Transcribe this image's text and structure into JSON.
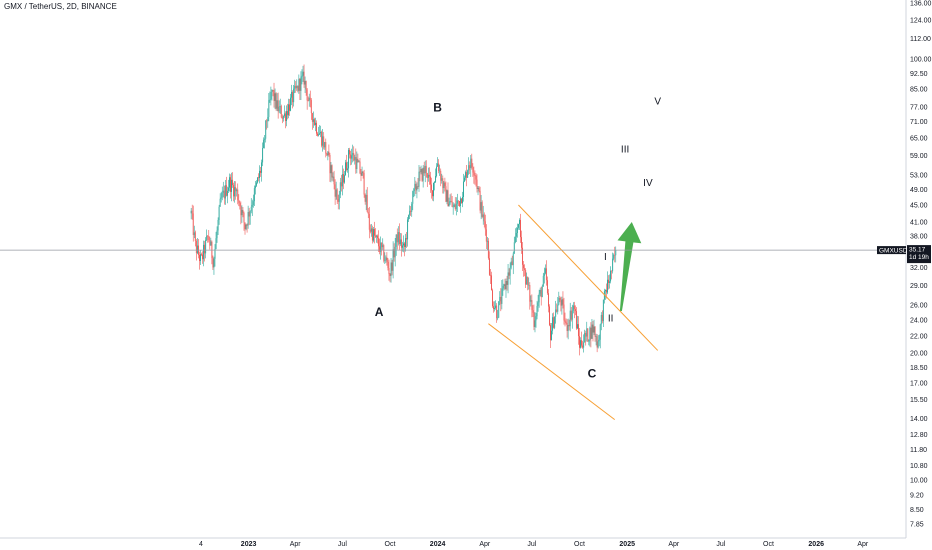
{
  "header": {
    "title": "GMX / TetherUS, 2D, BINANCE"
  },
  "colors": {
    "up": "#26a69a",
    "down": "#ef5350",
    "channel": "#f7a035",
    "arrow": "#4caf50",
    "last_price_bg": "#131722",
    "axis_text": "#131722"
  },
  "price_tag": {
    "symbol": "GMXUSDT",
    "price": "35.17",
    "countdown": "1d 19h"
  },
  "chart_data": {
    "type": "candlestick",
    "title": "GMX / TetherUS, 2D, BINANCE",
    "y_scale": "log",
    "ylim": [
      7.5,
      140
    ],
    "y_ticks": [
      "136.00",
      "124.00",
      "112.00",
      "100.00",
      "92.50",
      "85.00",
      "77.00",
      "71.00",
      "65.00",
      "59.00",
      "53.00",
      "49.00",
      "45.00",
      "41.00",
      "38.00",
      "35.00",
      "32.00",
      "29.00",
      "26.00",
      "24.00",
      "22.00",
      "20.00",
      "18.50",
      "17.00",
      "15.50",
      "14.00",
      "12.80",
      "11.80",
      "10.80",
      "10.00",
      "9.20",
      "8.50",
      "7.85"
    ],
    "x_ticks": [
      {
        "label": "4",
        "date": "2022-10-01"
      },
      {
        "label": "2023",
        "date": "2023-01-01",
        "bold": true
      },
      {
        "label": "Apr",
        "date": "2023-04-01"
      },
      {
        "label": "Jul",
        "date": "2023-07-01"
      },
      {
        "label": "Oct",
        "date": "2023-10-01"
      },
      {
        "label": "2024",
        "date": "2024-01-01",
        "bold": true
      },
      {
        "label": "Apr",
        "date": "2024-04-01"
      },
      {
        "label": "Jul",
        "date": "2024-07-01"
      },
      {
        "label": "Oct",
        "date": "2024-10-01"
      },
      {
        "label": "2025",
        "date": "2025-01-01",
        "bold": true
      },
      {
        "label": "Apr",
        "date": "2025-04-01"
      },
      {
        "label": "Jul",
        "date": "2025-07-01"
      },
      {
        "label": "Oct",
        "date": "2025-10-01"
      },
      {
        "label": "2026",
        "date": "2026-01-01",
        "bold": true
      },
      {
        "label": "Apr",
        "date": "2026-04-01"
      }
    ],
    "price_path": [
      {
        "date": "2022-09-12",
        "price": 43
      },
      {
        "date": "2022-09-20",
        "price": 36
      },
      {
        "date": "2022-10-01",
        "price": 33
      },
      {
        "date": "2022-10-15",
        "price": 38
      },
      {
        "date": "2022-10-25",
        "price": 33
      },
      {
        "date": "2022-11-08",
        "price": 46
      },
      {
        "date": "2022-11-25",
        "price": 51
      },
      {
        "date": "2022-12-10",
        "price": 48
      },
      {
        "date": "2022-12-25",
        "price": 40
      },
      {
        "date": "2023-01-10",
        "price": 47
      },
      {
        "date": "2023-01-25",
        "price": 55
      },
      {
        "date": "2023-02-05",
        "price": 72
      },
      {
        "date": "2023-02-15",
        "price": 84
      },
      {
        "date": "2023-02-25",
        "price": 77
      },
      {
        "date": "2023-03-10",
        "price": 73
      },
      {
        "date": "2023-03-25",
        "price": 80
      },
      {
        "date": "2023-04-10",
        "price": 88
      },
      {
        "date": "2023-04-18",
        "price": 90
      },
      {
        "date": "2023-04-28",
        "price": 78
      },
      {
        "date": "2023-05-10",
        "price": 70
      },
      {
        "date": "2023-05-25",
        "price": 64
      },
      {
        "date": "2023-06-10",
        "price": 54
      },
      {
        "date": "2023-06-22",
        "price": 46
      },
      {
        "date": "2023-07-05",
        "price": 54
      },
      {
        "date": "2023-07-15",
        "price": 60
      },
      {
        "date": "2023-07-25",
        "price": 58
      },
      {
        "date": "2023-08-10",
        "price": 52
      },
      {
        "date": "2023-08-22",
        "price": 40
      },
      {
        "date": "2023-09-05",
        "price": 37
      },
      {
        "date": "2023-09-20",
        "price": 34
      },
      {
        "date": "2023-10-01",
        "price": 31
      },
      {
        "date": "2023-10-15",
        "price": 38
      },
      {
        "date": "2023-10-28",
        "price": 35
      },
      {
        "date": "2023-11-10",
        "price": 45
      },
      {
        "date": "2023-11-25",
        "price": 52
      },
      {
        "date": "2023-12-10",
        "price": 55
      },
      {
        "date": "2023-12-20",
        "price": 48
      },
      {
        "date": "2024-01-01",
        "price": 57
      },
      {
        "date": "2024-01-15",
        "price": 48
      },
      {
        "date": "2024-02-01",
        "price": 44
      },
      {
        "date": "2024-02-15",
        "price": 47
      },
      {
        "date": "2024-03-01",
        "price": 57
      },
      {
        "date": "2024-03-12",
        "price": 55
      },
      {
        "date": "2024-03-25",
        "price": 44
      },
      {
        "date": "2024-04-05",
        "price": 38
      },
      {
        "date": "2024-04-15",
        "price": 27
      },
      {
        "date": "2024-04-25",
        "price": 25
      },
      {
        "date": "2024-05-10",
        "price": 29
      },
      {
        "date": "2024-05-25",
        "price": 33
      },
      {
        "date": "2024-06-05",
        "price": 42
      },
      {
        "date": "2024-06-15",
        "price": 32
      },
      {
        "date": "2024-06-25",
        "price": 28
      },
      {
        "date": "2024-07-05",
        "price": 24
      },
      {
        "date": "2024-07-15",
        "price": 27
      },
      {
        "date": "2024-07-28",
        "price": 31
      },
      {
        "date": "2024-08-05",
        "price": 22
      },
      {
        "date": "2024-08-15",
        "price": 25
      },
      {
        "date": "2024-08-25",
        "price": 27
      },
      {
        "date": "2024-09-05",
        "price": 23
      },
      {
        "date": "2024-09-20",
        "price": 26
      },
      {
        "date": "2024-10-01",
        "price": 21
      },
      {
        "date": "2024-10-15",
        "price": 22
      },
      {
        "date": "2024-10-28",
        "price": 23
      },
      {
        "date": "2024-11-05",
        "price": 21
      },
      {
        "date": "2024-11-12",
        "price": 24
      },
      {
        "date": "2024-11-20",
        "price": 28
      },
      {
        "date": "2024-12-01",
        "price": 31
      },
      {
        "date": "2024-12-10",
        "price": 35.17
      }
    ],
    "channel": {
      "upper": [
        {
          "date": "2024-06-05",
          "price": 45
        },
        {
          "date": "2025-03-01",
          "price": 20.3
        }
      ],
      "lower": [
        {
          "date": "2024-04-08",
          "price": 23.5
        },
        {
          "date": "2024-12-08",
          "price": 13.9
        }
      ]
    },
    "projection_arrow": {
      "from": {
        "date": "2024-12-20",
        "price": 25.2
      },
      "to": {
        "date": "2025-01-10",
        "price": 41
      }
    },
    "wave_labels": [
      {
        "text": "A",
        "date": "2023-09-10",
        "price": 24.5,
        "size": "big"
      },
      {
        "text": "B",
        "date": "2024-01-01",
        "price": 75,
        "size": "big"
      },
      {
        "text": "C",
        "date": "2024-10-25",
        "price": 17.5,
        "size": "big"
      },
      {
        "text": "I",
        "date": "2024-11-20",
        "price": 33.3,
        "size": "small"
      },
      {
        "text": "II",
        "date": "2024-11-30",
        "price": 23.8,
        "size": "small"
      },
      {
        "text": "III",
        "date": "2024-12-28",
        "price": 60,
        "size": "small"
      },
      {
        "text": "IV",
        "date": "2025-02-10",
        "price": 50,
        "size": "small"
      },
      {
        "text": "V",
        "date": "2025-03-01",
        "price": 78,
        "size": "small"
      }
    ],
    "last_price": 35.17
  }
}
